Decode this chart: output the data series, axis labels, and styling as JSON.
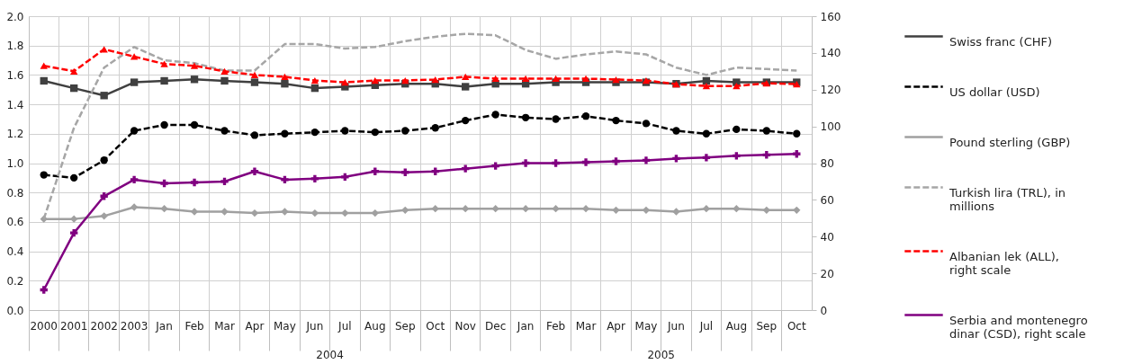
{
  "chart_data": {
    "type": "line",
    "categories": [
      "2000",
      "2001",
      "2002",
      "2003",
      "Jan",
      "Feb",
      "Mar",
      "Apr",
      "May",
      "Jun",
      "Jul",
      "Aug",
      "Sep",
      "Oct",
      "Nov",
      "Dec",
      "Jan",
      "Feb",
      "Mar",
      "Apr",
      "May",
      "Jun",
      "Jul",
      "Aug",
      "Sep",
      "Oct"
    ],
    "annotations": [
      "2004",
      "2005"
    ],
    "ylim": [
      0,
      2
    ],
    "yticks": [
      {
        "value": 0,
        "label": "0.0"
      },
      0.2,
      0.4,
      0.6,
      0.8,
      {
        "value": 1,
        "label": "1.0"
      },
      1.2,
      1.4,
      1.6,
      1.8,
      {
        "value": 2,
        "label": "2.0"
      }
    ],
    "y2lim": [
      0,
      160
    ],
    "y2ticks": [
      0,
      20,
      40,
      60,
      80,
      100,
      120,
      140,
      160
    ],
    "grid": true,
    "legend": "right",
    "series": [
      {
        "name": "Swiss franc (CHF)",
        "color": "#404040",
        "marker": "square",
        "line_style": "solid",
        "values": [
          1.56,
          1.51,
          1.46,
          1.55,
          1.56,
          1.57,
          1.56,
          1.55,
          1.54,
          1.51,
          1.52,
          1.53,
          1.54,
          1.54,
          1.52,
          1.54,
          1.54,
          1.55,
          1.55,
          1.55,
          1.55,
          1.54,
          1.56,
          1.55,
          1.55,
          1.55
        ]
      },
      {
        "name": "US dollar (USD)",
        "color": "#000000",
        "marker": "circle",
        "line_style": "dashed",
        "values": [
          0.92,
          0.9,
          1.02,
          1.22,
          1.26,
          1.26,
          1.22,
          1.19,
          1.2,
          1.21,
          1.22,
          1.21,
          1.22,
          1.24,
          1.29,
          1.33,
          1.31,
          1.3,
          1.32,
          1.29,
          1.27,
          1.22,
          1.2,
          1.23,
          1.22,
          1.2
        ]
      },
      {
        "name": "Pound sterling  (GBP)",
        "color": "#a0a0a0",
        "marker": "diamond",
        "line_style": "solid",
        "values": [
          0.62,
          0.62,
          0.64,
          0.7,
          0.69,
          0.67,
          0.67,
          0.66,
          0.67,
          0.66,
          0.66,
          0.66,
          0.68,
          0.69,
          0.69,
          0.69,
          0.69,
          0.69,
          0.69,
          0.68,
          0.68,
          0.67,
          0.69,
          0.69,
          0.68,
          0.68
        ]
      },
      {
        "name": "Turkish lira (TRL), in millions",
        "color": "#a6a6a6",
        "marker": "none",
        "line_style": "dashed",
        "values": [
          0.62,
          1.24,
          1.65,
          1.79,
          1.7,
          1.68,
          1.63,
          1.63,
          1.81,
          1.81,
          1.78,
          1.79,
          1.83,
          1.86,
          1.88,
          1.87,
          1.77,
          1.71,
          1.74,
          1.76,
          1.74,
          1.65,
          1.6,
          1.65,
          1.64,
          1.63
        ]
      },
      {
        "name": "Albanian lek (ALL), right scale",
        "color": "#ff0000",
        "marker": "triangle",
        "line_style": "dashed",
        "axis": "y2",
        "values": [
          133,
          130,
          142,
          138,
          134,
          133,
          130,
          128,
          127,
          125,
          124,
          125,
          125,
          125.5,
          127,
          126,
          126,
          126,
          126,
          125.5,
          125,
          123,
          122,
          122,
          123.5,
          123
        ]
      },
      {
        "name": "Serbia and montenegro dinar (CSD), right scale",
        "color": "#800080",
        "marker": "cross",
        "line_style": "solid",
        "axis": "y2",
        "values": [
          11,
          42,
          62,
          71,
          69,
          69.5,
          70,
          75.5,
          71,
          71.5,
          72.5,
          75.5,
          75,
          75.5,
          77,
          78.5,
          80,
          80,
          80.5,
          81,
          81.5,
          82.5,
          83,
          84,
          84.5,
          85
        ]
      }
    ]
  }
}
